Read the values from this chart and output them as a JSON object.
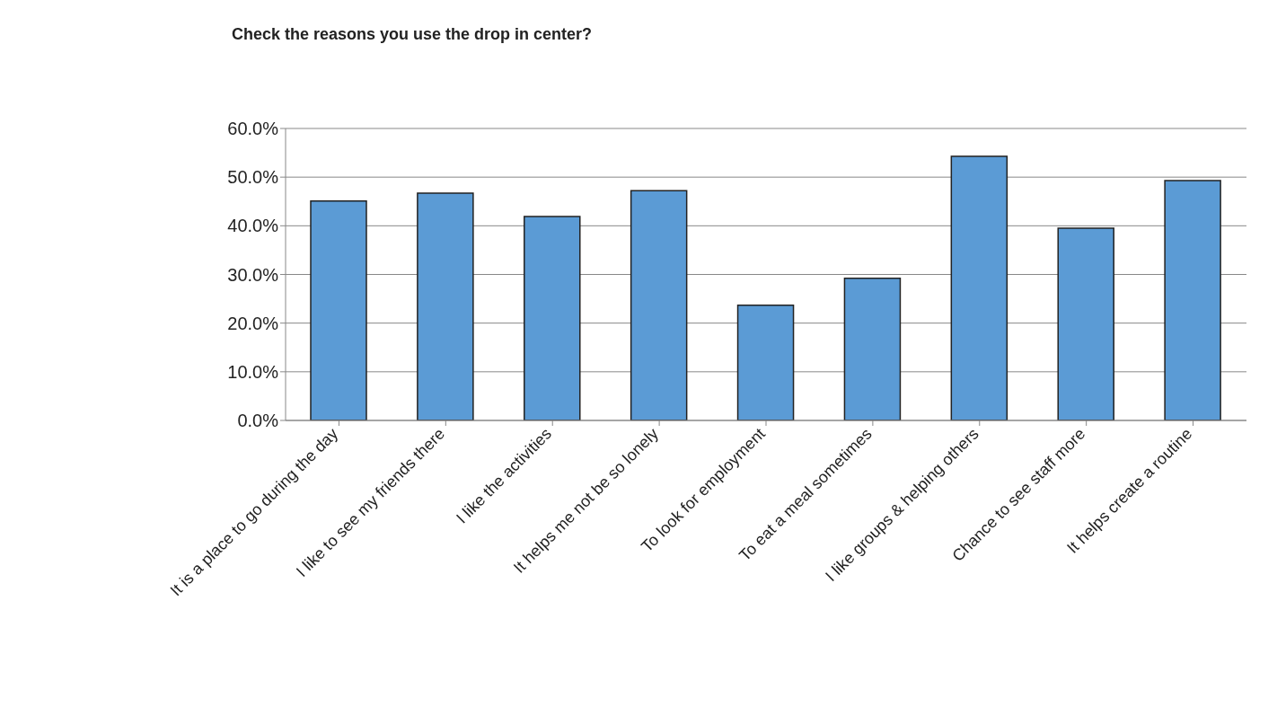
{
  "chart_data": {
    "type": "bar",
    "title": "Check the reasons you use the drop in center?",
    "categories": [
      "It is a place to go during the day",
      "I like to see my friends there",
      "I like the activities",
      "It helps me not be so lonely",
      "To look for employment",
      "To eat a meal sometimes",
      "I like groups & helping others",
      "Chance to see staff more",
      "It helps create a routine"
    ],
    "values": [
      0.451,
      0.467,
      0.419,
      0.472,
      0.237,
      0.292,
      0.543,
      0.395,
      0.493
    ],
    "color": "#5b9bd5",
    "ylim": [
      0,
      0.6
    ],
    "yticks": [
      {
        "value": 0,
        "label": "0.0%"
      },
      {
        "value": 0.1,
        "label": "10.0%"
      },
      {
        "value": 0.2,
        "label": "20.0%"
      },
      {
        "value": 0.3,
        "label": "30.0%"
      },
      {
        "value": 0.4,
        "label": "40.0%"
      },
      {
        "value": 0.5,
        "label": "50.0%"
      },
      {
        "value": 0.6,
        "label": "60.0%"
      }
    ],
    "grid": "y",
    "legend": false
  }
}
